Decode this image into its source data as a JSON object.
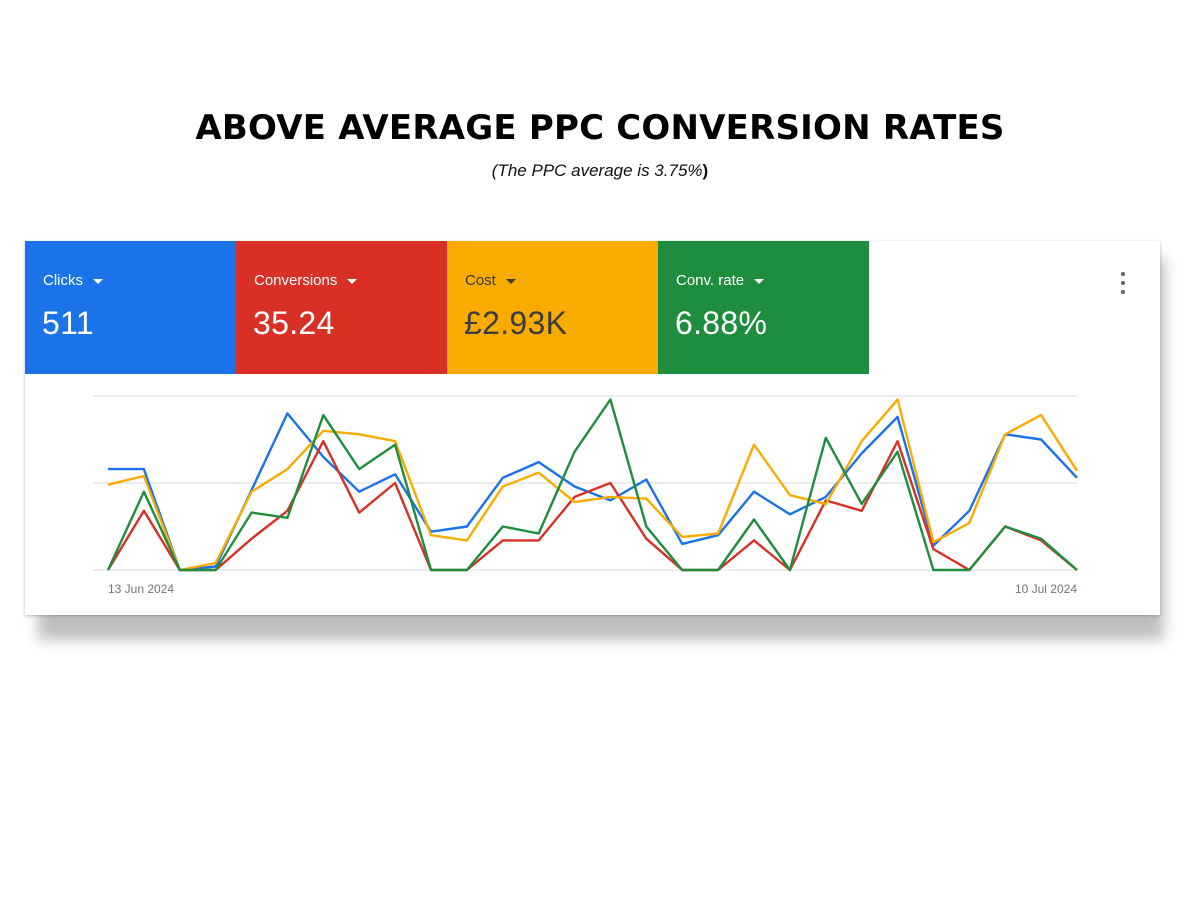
{
  "page": {
    "title": "ABOVE AVERAGE PPC CONVERSION RATES",
    "subtitle_text": "(The PPC average is 3.75%",
    "subtitle_close": ")"
  },
  "scorecards": [
    {
      "label": "Clicks",
      "value": "511",
      "color": "#1a73e8"
    },
    {
      "label": "Conversions",
      "value": "35.24",
      "color": "#d93025"
    },
    {
      "label": "Cost",
      "value": "£2.93K",
      "color": "#f9ab00"
    },
    {
      "label": "Conv. rate",
      "value": "6.88%",
      "color": "#1e8e3e"
    }
  ],
  "icons": {
    "more": "more-vert-icon",
    "dropdown": "caret-down-icon"
  },
  "chart_data": {
    "type": "line",
    "x_start_label": "13 Jun 2024",
    "x_end_label": "10 Jul 2024",
    "ylim": [
      0,
      100
    ],
    "grid": true,
    "series": [
      {
        "name": "Clicks",
        "color": "#1a73e8",
        "values": [
          58,
          58,
          0,
          2,
          46,
          90,
          65,
          45,
          55,
          22,
          25,
          53,
          62,
          48,
          40,
          52,
          15,
          20,
          45,
          32,
          42,
          67,
          88,
          14,
          34,
          78,
          75,
          53
        ]
      },
      {
        "name": "Conversions",
        "color": "#d93025",
        "values": [
          0,
          34,
          0,
          0,
          18,
          34,
          74,
          33,
          50,
          0,
          0,
          17,
          17,
          42,
          50,
          18,
          0,
          0,
          17,
          0,
          40,
          34,
          74,
          12,
          0,
          25,
          17,
          0
        ]
      },
      {
        "name": "Cost",
        "color": "#f9ab00",
        "values": [
          49,
          54,
          0,
          4,
          45,
          58,
          80,
          78,
          74,
          20,
          17,
          48,
          56,
          39,
          42,
          41,
          19,
          21,
          72,
          43,
          38,
          74,
          98,
          16,
          27,
          78,
          89,
          57
        ]
      },
      {
        "name": "Conv. rate",
        "color": "#1e8e3e",
        "values": [
          0,
          45,
          0,
          0,
          33,
          30,
          89,
          58,
          72,
          0,
          0,
          25,
          21,
          68,
          98,
          25,
          0,
          0,
          29,
          0,
          76,
          38,
          68,
          0,
          0,
          25,
          18,
          0
        ]
      }
    ]
  }
}
